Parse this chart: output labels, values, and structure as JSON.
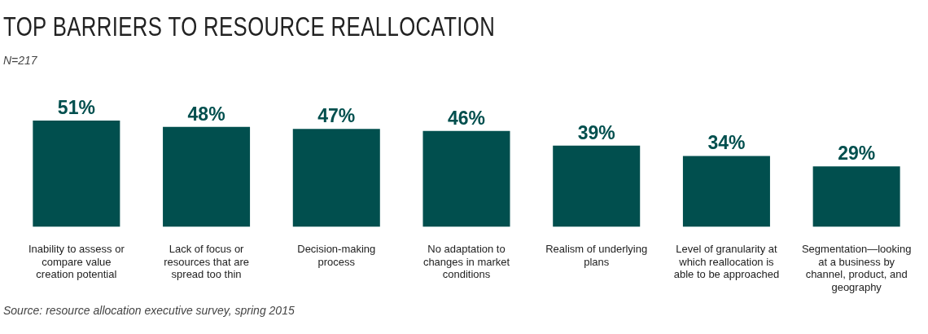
{
  "chart_data": {
    "type": "bar",
    "title": "TOP BARRIERS TO RESOURCE REALLOCATION",
    "subtitle": "N=217",
    "categories": [
      "Inability to assess or compare value creation potential",
      "Lack of focus or resources that are spread too thin",
      "Decision-making process",
      "No adaptation to changes in market conditions",
      "Realism of underlying plans",
      "Level of granularity at which reallocation is able to be approached",
      "Segmentation—looking at a business by channel, product, and geography"
    ],
    "values": [
      51,
      48,
      47,
      46,
      39,
      34,
      29
    ],
    "value_labels": [
      "51%",
      "48%",
      "47%",
      "46%",
      "39%",
      "34%",
      "29%"
    ],
    "color": "#014f4e",
    "annotations": [
      "Source: resource allocation executive survey, spring 2015"
    ]
  }
}
